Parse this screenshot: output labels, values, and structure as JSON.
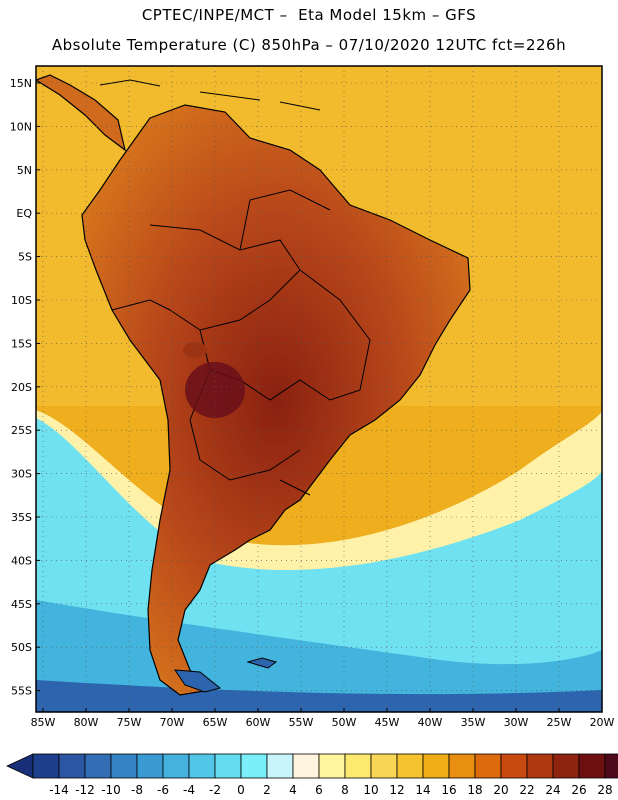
{
  "header": {
    "line1": "CPTEC/INPE/MCT –  Eta Model 15km – GFS",
    "line2": "Absolute Temperature (C) 850hPa – 07/10/2020 12UTC fct=226h"
  },
  "map": {
    "lat_labels": [
      "15N",
      "10N",
      "5N",
      "EQ",
      "5S",
      "10S",
      "15S",
      "20S",
      "25S",
      "30S",
      "35S",
      "40S",
      "45S",
      "50S",
      "55S"
    ],
    "lon_labels": [
      "85W",
      "80W",
      "75W",
      "70W",
      "65W",
      "60W",
      "55W",
      "50W",
      "45W",
      "40W",
      "35W",
      "30W",
      "25W",
      "20W"
    ],
    "lon_range": [
      -85,
      -20
    ],
    "lat_range": [
      16,
      -57
    ],
    "ocean_color": "#f0b21c",
    "land_color": "#c45a1e"
  },
  "colorbar": {
    "labels": [
      "-14",
      "-12",
      "-10",
      "-8",
      "-6",
      "-4",
      "-2",
      "0",
      "2",
      "4",
      "6",
      "8",
      "10",
      "12",
      "14",
      "16",
      "18",
      "20",
      "22",
      "24",
      "26",
      "28"
    ],
    "colors": [
      "#1e3f8c",
      "#2a56a2",
      "#326db5",
      "#3583c4",
      "#3a9ad2",
      "#45b1dd",
      "#52c6e6",
      "#63dcef",
      "#7aeffa",
      "#c9f4fb",
      "#fff5de",
      "#fff59e",
      "#fde96e",
      "#f9d655",
      "#f6c330",
      "#f1ae14",
      "#e88e10",
      "#de6a0e",
      "#c84a10",
      "#b0380e",
      "#8e2410",
      "#6e1010",
      "#4e0a1a"
    ],
    "low_arrow_color": "#1a2f7a",
    "high_arrow_color": "#5a0a28"
  }
}
